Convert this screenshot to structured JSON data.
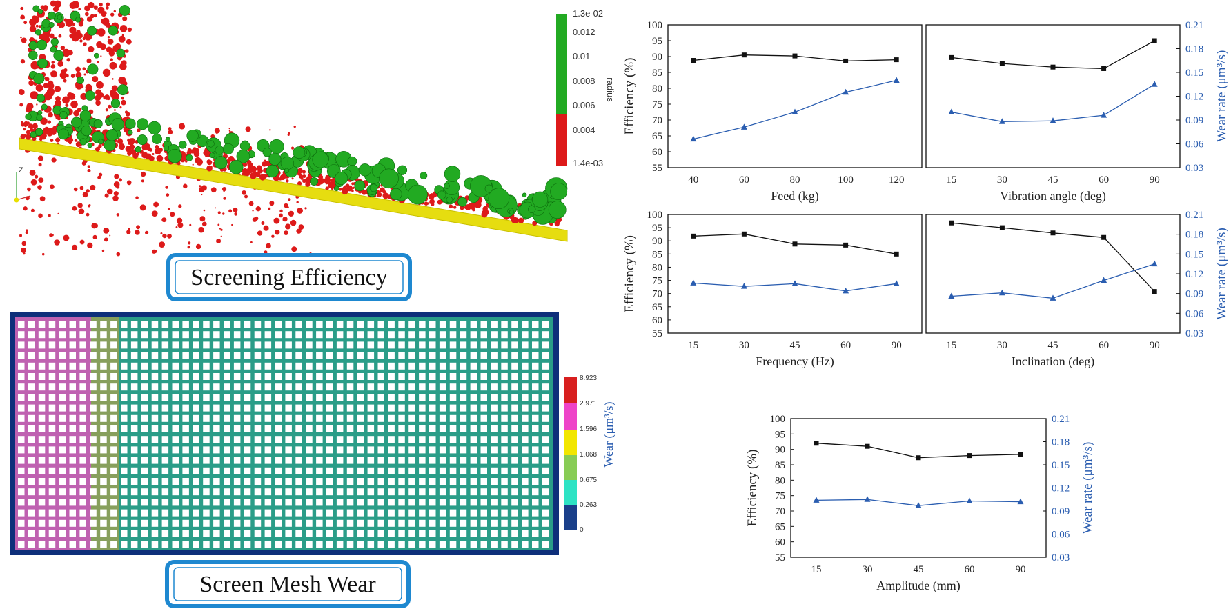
{
  "simulation": {
    "efficiency_banner": "Screening Efficiency",
    "wear_banner": "Screen Mesh Wear",
    "radius_colorbar": {
      "title": "radius",
      "max_label": "1.3e-02",
      "min_label": "1.4e-03",
      "ticks": [
        "0.012",
        "0.01",
        "0.008",
        "0.006",
        "0.004"
      ],
      "colors": {
        "large": "#22aa22",
        "small": "#dd1a1a"
      }
    },
    "axis_glyph_label": "Z",
    "wear_colorbar": {
      "title": "Wear (μm³/s)",
      "ticks": [
        "8.923",
        "2.971",
        "1.596",
        "1.068",
        "0.675",
        "0.263",
        "0"
      ],
      "colors": [
        "#d81f1f",
        "#ee44c8",
        "#f2e600",
        "#88cc55",
        "#2ee3c4",
        "#1a3f8a"
      ]
    }
  },
  "chart_data": [
    {
      "type": "line",
      "xlabel": "Feed (kg)",
      "ylabel": "Efficiency (%)",
      "y2label": "",
      "categories": [
        "40",
        "60",
        "80",
        "100",
        "120"
      ],
      "ylim": [
        55,
        100
      ],
      "yticks": [
        "55",
        "60",
        "65",
        "70",
        "75",
        "80",
        "85",
        "90",
        "95",
        "100"
      ],
      "y2lim": [
        0.03,
        0.21
      ],
      "y2ticks": [],
      "series": [
        {
          "axis": "left",
          "marker": "square",
          "color": "#111111",
          "values": [
            88.8,
            90.5,
            90.2,
            88.6,
            89.0
          ]
        },
        {
          "axis": "right",
          "marker": "triangle",
          "color": "#2a5db0",
          "values": [
            0.066,
            0.081,
            0.1,
            0.125,
            0.14
          ]
        }
      ]
    },
    {
      "type": "line",
      "xlabel": "Vibration angle (deg)",
      "ylabel": "",
      "y2label": "Wear rate (μm³/s)",
      "categories": [
        "15",
        "30",
        "45",
        "60",
        "90"
      ],
      "ylim": [
        55,
        100
      ],
      "yticks": [],
      "y2lim": [
        0.03,
        0.21
      ],
      "y2ticks": [
        "0.03",
        "0.06",
        "0.09",
        "0.12",
        "0.15",
        "0.18",
        "0.21"
      ],
      "series": [
        {
          "axis": "left",
          "marker": "square",
          "color": "#111111",
          "values": [
            89.7,
            87.8,
            86.7,
            86.2,
            95.0
          ]
        },
        {
          "axis": "right",
          "marker": "triangle",
          "color": "#2a5db0",
          "values": [
            0.1,
            0.088,
            0.089,
            0.096,
            0.135
          ]
        }
      ]
    },
    {
      "type": "line",
      "xlabel": "Frequency (Hz)",
      "ylabel": "Efficiency (%)",
      "y2label": "",
      "categories": [
        "15",
        "30",
        "45",
        "60",
        "90"
      ],
      "ylim": [
        55,
        100
      ],
      "yticks": [
        "55",
        "60",
        "65",
        "70",
        "75",
        "80",
        "85",
        "90",
        "95",
        "100"
      ],
      "y2lim": [
        0.03,
        0.21
      ],
      "y2ticks": [],
      "series": [
        {
          "axis": "left",
          "marker": "square",
          "color": "#111111",
          "values": [
            91.8,
            92.6,
            88.8,
            88.4,
            85.0
          ]
        },
        {
          "axis": "right",
          "marker": "triangle",
          "color": "#2a5db0",
          "values": [
            0.106,
            0.101,
            0.105,
            0.094,
            0.105
          ]
        }
      ]
    },
    {
      "type": "line",
      "xlabel": "Inclination (deg)",
      "ylabel": "",
      "y2label": "Wear rate (μm³/s)",
      "categories": [
        "15",
        "30",
        "45",
        "60",
        "90"
      ],
      "ylim": [
        55,
        100
      ],
      "yticks": [],
      "y2lim": [
        0.03,
        0.21
      ],
      "y2ticks": [
        "0.03",
        "0.06",
        "0.09",
        "0.12",
        "0.15",
        "0.18",
        "0.21"
      ],
      "series": [
        {
          "axis": "left",
          "marker": "square",
          "color": "#111111",
          "values": [
            96.8,
            95.0,
            93.0,
            91.3,
            70.8
          ]
        },
        {
          "axis": "right",
          "marker": "triangle",
          "color": "#2a5db0",
          "values": [
            0.086,
            0.091,
            0.083,
            0.11,
            0.135
          ]
        }
      ]
    },
    {
      "type": "line",
      "xlabel": "Amplitude (mm)",
      "ylabel": "Efficiency (%)",
      "y2label": "Wear rate (μm³/s)",
      "categories": [
        "15",
        "30",
        "45",
        "60",
        "90"
      ],
      "ylim": [
        55,
        100
      ],
      "yticks": [
        "55",
        "60",
        "65",
        "70",
        "75",
        "80",
        "85",
        "90",
        "95",
        "100"
      ],
      "y2lim": [
        0.03,
        0.21
      ],
      "y2ticks": [
        "0.03",
        "0.06",
        "0.09",
        "0.12",
        "0.15",
        "0.18",
        "0.21"
      ],
      "series": [
        {
          "axis": "left",
          "marker": "square",
          "color": "#111111",
          "values": [
            92.0,
            91.0,
            87.3,
            88.0,
            88.4
          ]
        },
        {
          "axis": "right",
          "marker": "triangle",
          "color": "#2a5db0",
          "values": [
            0.104,
            0.105,
            0.097,
            0.103,
            0.102
          ]
        }
      ]
    }
  ]
}
